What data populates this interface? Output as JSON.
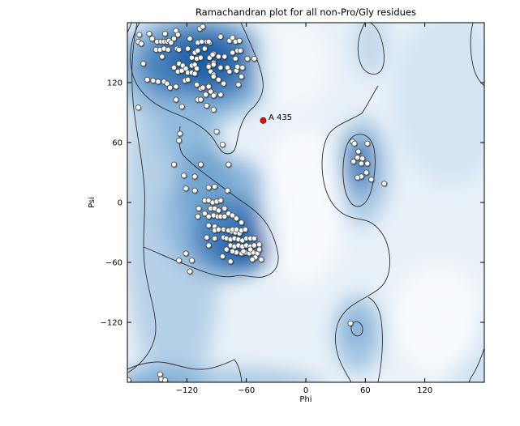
{
  "title": "Ramachandran plot for all non-Pro/Gly residues",
  "chart_data": {
    "type": "scatter",
    "title": "Ramachandran plot for all non-Pro/Gly residues",
    "xlabel": "Phi",
    "ylabel": "Psi",
    "xlim": [
      -180,
      180
    ],
    "ylim": [
      -180,
      180
    ],
    "x_ticks": [
      {
        "v": -120,
        "label": "−120"
      },
      {
        "v": -60,
        "label": "−60"
      },
      {
        "v": 0,
        "label": "0"
      },
      {
        "v": 60,
        "label": "60"
      },
      {
        "v": 120,
        "label": "120"
      }
    ],
    "y_ticks": [
      {
        "v": -120,
        "label": "−120"
      },
      {
        "v": -60,
        "label": "−60"
      },
      {
        "v": 0,
        "label": "0"
      },
      {
        "v": 60,
        "label": "60"
      },
      {
        "v": 120,
        "label": "120"
      }
    ],
    "grid": false,
    "legend": "none",
    "background": "blue kernel-density shading with two black contour levels",
    "style": {
      "density_low": "#e9f1f8",
      "density_mid": "#4983bd",
      "density_high": "#1e60a9",
      "contour": "#2b2b2b",
      "marker_fill": "#fdfdf9",
      "marker_edge": "#4a4a4a",
      "annotation_color": "#e01010"
    },
    "annotation": {
      "label": "A 435",
      "phi": -43,
      "psi": 82
    },
    "series": [
      {
        "name": "non-Pro/Gly residues",
        "marker": "circle",
        "points": [
          [
            -168,
            168
          ],
          [
            -169,
            161
          ],
          [
            -166,
            159
          ],
          [
            -158,
            169
          ],
          [
            -155,
            164
          ],
          [
            -142,
            169
          ],
          [
            -151,
            153
          ],
          [
            -147,
            153
          ],
          [
            -143,
            154
          ],
          [
            -150,
            161
          ],
          [
            -146,
            161
          ],
          [
            -143,
            161
          ],
          [
            -140,
            161
          ],
          [
            -138,
            162
          ],
          [
            -136,
            160
          ],
          [
            -131,
            172
          ],
          [
            -129,
            168
          ],
          [
            -133,
            164
          ],
          [
            -145,
            146
          ],
          [
            -139,
            153
          ],
          [
            -130,
            154
          ],
          [
            -128,
            153
          ],
          [
            -117,
            164
          ],
          [
            -119,
            154
          ],
          [
            -107,
            174
          ],
          [
            -104,
            176
          ],
          [
            -109,
            160
          ],
          [
            -105,
            161
          ],
          [
            -100,
            161
          ],
          [
            -97,
            160
          ],
          [
            -112,
            150
          ],
          [
            -109,
            152
          ],
          [
            -115,
            145
          ],
          [
            -110,
            144
          ],
          [
            -106,
            145
          ],
          [
            -128,
            139
          ],
          [
            -124,
            137
          ],
          [
            -133,
            135
          ],
          [
            -129,
            131
          ],
          [
            -125,
            132
          ],
          [
            -121,
            134
          ],
          [
            -119,
            130
          ],
          [
            -115,
            137
          ],
          [
            -112,
            138
          ],
          [
            -110,
            134
          ],
          [
            -115,
            130
          ],
          [
            -112,
            129
          ],
          [
            -164,
            139
          ],
          [
            -160,
            123
          ],
          [
            -154,
            122
          ],
          [
            -149,
            121
          ],
          [
            -143,
            121
          ],
          [
            -140,
            119
          ],
          [
            -137,
            115
          ],
          [
            -131,
            116
          ],
          [
            -122,
            122
          ],
          [
            -119,
            123
          ],
          [
            -110,
            118
          ],
          [
            -106,
            114
          ],
          [
            -104,
            115
          ],
          [
            -98,
            117
          ],
          [
            -96,
            111
          ],
          [
            -92,
            108
          ],
          [
            -131,
            103
          ],
          [
            -125,
            96
          ],
          [
            -109,
            103
          ],
          [
            -101,
            108
          ],
          [
            -96,
            131
          ],
          [
            -93,
            128
          ],
          [
            -98,
            137
          ],
          [
            -93,
            140
          ],
          [
            -97,
            145
          ],
          [
            -93,
            149
          ],
          [
            -102,
            154
          ],
          [
            -86,
            166
          ],
          [
            -77,
            162
          ],
          [
            -74,
            165
          ],
          [
            -70,
            161
          ],
          [
            -98,
            161
          ],
          [
            -94,
            148
          ],
          [
            -88,
            146
          ],
          [
            -82,
            146
          ],
          [
            -74,
            150
          ],
          [
            -67,
            152
          ],
          [
            -98,
            136
          ],
          [
            -93,
            138
          ],
          [
            -86,
            135
          ],
          [
            -79,
            135
          ],
          [
            -77,
            131
          ],
          [
            -70,
            132
          ],
          [
            -93,
            126
          ],
          [
            -88,
            123
          ],
          [
            -83,
            119
          ],
          [
            -98,
            116
          ],
          [
            -93,
            107
          ],
          [
            -86,
            108
          ],
          [
            -106,
            103
          ],
          [
            -100,
            97
          ],
          [
            -93,
            93
          ],
          [
            -71,
            161
          ],
          [
            -67,
            162
          ],
          [
            -69,
            152
          ],
          [
            -66,
            152
          ],
          [
            -71,
            144
          ],
          [
            -69,
            136
          ],
          [
            -64,
            135
          ],
          [
            -59,
            144
          ],
          [
            -52,
            144
          ],
          [
            -65,
            126
          ],
          [
            -68,
            118
          ],
          [
            -169,
            95
          ],
          [
            -127,
            69
          ],
          [
            -128,
            62
          ],
          [
            -90,
            71
          ],
          [
            -84,
            58
          ],
          [
            -133,
            38
          ],
          [
            -106,
            38
          ],
          [
            -78,
            38
          ],
          [
            -123,
            27
          ],
          [
            -112,
            26
          ],
          [
            -121,
            14
          ],
          [
            -112,
            12
          ],
          [
            -98,
            15
          ],
          [
            -92,
            16
          ],
          [
            -79,
            12
          ],
          [
            -102,
            2
          ],
          [
            -98,
            2
          ],
          [
            -94,
            0
          ],
          [
            -90,
            1
          ],
          [
            -86,
            2
          ],
          [
            -82,
            -6
          ],
          [
            -96,
            -6
          ],
          [
            -92,
            -6
          ],
          [
            -88,
            -8
          ],
          [
            -108,
            -6
          ],
          [
            -102,
            -11
          ],
          [
            -98,
            -14
          ],
          [
            -93,
            -13
          ],
          [
            -89,
            -14
          ],
          [
            -86,
            -14
          ],
          [
            -82,
            -14
          ],
          [
            -78,
            -11
          ],
          [
            -74,
            -13
          ],
          [
            -70,
            -16
          ],
          [
            -65,
            -20
          ],
          [
            -98,
            -23
          ],
          [
            -92,
            -24
          ],
          [
            -88,
            -26
          ],
          [
            -83,
            -27
          ],
          [
            -79,
            -28
          ],
          [
            -75,
            -29
          ],
          [
            -71,
            -30
          ],
          [
            -67,
            -31
          ],
          [
            -109,
            -14
          ],
          [
            -92,
            -28
          ],
          [
            -88,
            -27
          ],
          [
            -83,
            -35
          ],
          [
            -78,
            -28
          ],
          [
            -74,
            -27
          ],
          [
            -70,
            -27
          ],
          [
            -65,
            -28
          ],
          [
            -61,
            -27
          ],
          [
            -100,
            -35
          ],
          [
            -92,
            -36
          ],
          [
            -80,
            -36
          ],
          [
            -76,
            -37
          ],
          [
            -72,
            -36
          ],
          [
            -68,
            -37
          ],
          [
            -64,
            -38
          ],
          [
            -60,
            -36
          ],
          [
            -56,
            -36
          ],
          [
            -52,
            -36
          ],
          [
            -98,
            -43
          ],
          [
            -76,
            -43
          ],
          [
            -72,
            -44
          ],
          [
            -68,
            -43
          ],
          [
            -64,
            -44
          ],
          [
            -60,
            -43
          ],
          [
            -56,
            -44
          ],
          [
            -52,
            -43
          ],
          [
            -47,
            -42
          ],
          [
            -70,
            -50
          ],
          [
            -65,
            -51
          ],
          [
            -61,
            -50
          ],
          [
            -57,
            -51
          ],
          [
            -53,
            -50
          ],
          [
            -49,
            -51
          ],
          [
            -84,
            -54
          ],
          [
            -76,
            -59
          ],
          [
            -121,
            -51
          ],
          [
            -128,
            -58
          ],
          [
            -115,
            -58
          ],
          [
            -117,
            -69
          ],
          [
            -47,
            -47
          ],
          [
            -51,
            -55
          ],
          [
            -45,
            -57
          ],
          [
            -56,
            -47
          ],
          [
            -54,
            -57
          ],
          [
            -63,
            -49
          ],
          [
            -74,
            -49
          ],
          [
            -80,
            -47
          ],
          [
            47,
            61
          ],
          [
            49,
            59
          ],
          [
            62,
            59
          ],
          [
            53,
            51
          ],
          [
            52,
            45
          ],
          [
            57,
            44
          ],
          [
            48,
            41
          ],
          [
            56,
            39
          ],
          [
            62,
            39
          ],
          [
            61,
            30
          ],
          [
            56,
            26
          ],
          [
            52,
            25
          ],
          [
            66,
            23
          ],
          [
            79,
            19
          ],
          [
            45,
            -121
          ],
          [
            -147,
            -172
          ],
          [
            -146,
            -177
          ],
          [
            -142,
            -178
          ],
          [
            -179,
            -178
          ]
        ]
      }
    ]
  }
}
